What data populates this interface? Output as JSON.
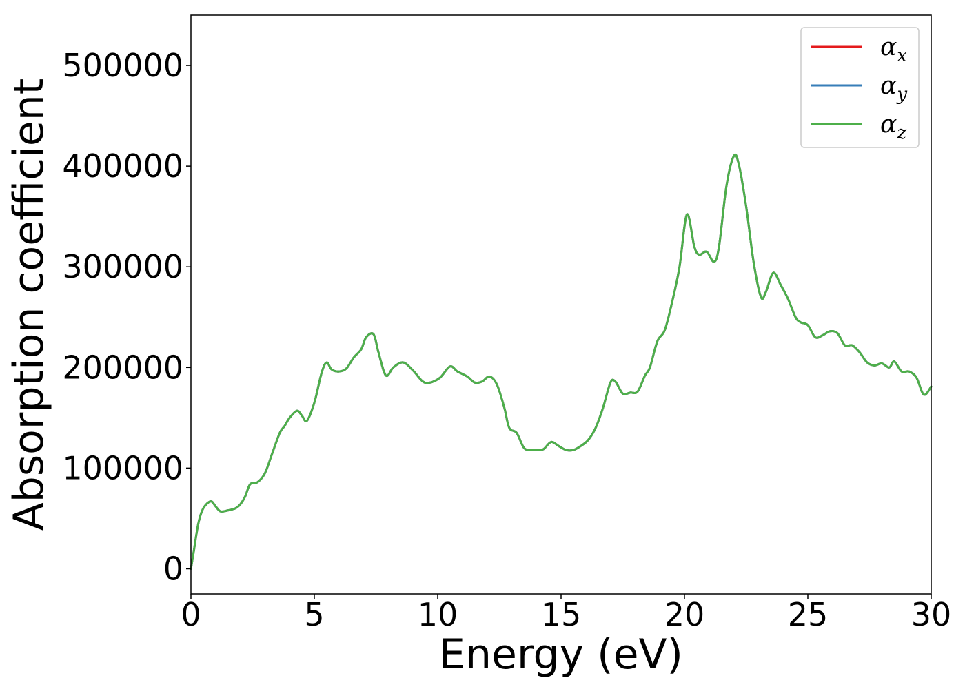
{
  "chart_data": {
    "type": "line",
    "xlabel": "Energy (eV)",
    "ylabel": "Absorption coefficient",
    "xlim": [
      0,
      30
    ],
    "ylim": [
      -25000,
      550000
    ],
    "xticks": [
      0,
      5,
      10,
      15,
      20,
      25,
      30
    ],
    "yticks": [
      0,
      100000,
      200000,
      300000,
      400000,
      500000
    ],
    "grid": false,
    "legend_position": "top-right",
    "series": [
      {
        "name": "αx",
        "symbol": "α",
        "subscript": "x",
        "color": "#e41a1c",
        "x": [
          0,
          0.1,
          0.3,
          0.5,
          0.8,
          1.0,
          1.2,
          1.5,
          1.8,
          2.0,
          2.2,
          2.4,
          2.7,
          3.0,
          3.3,
          3.6,
          3.8,
          4.0,
          4.3,
          4.5,
          4.7,
          5.0,
          5.3,
          5.5,
          5.7,
          6.0,
          6.3,
          6.6,
          6.9,
          7.1,
          7.4,
          7.6,
          7.9,
          8.2,
          8.6,
          9.0,
          9.4,
          9.7,
          10.1,
          10.5,
          10.8,
          11.2,
          11.5,
          11.8,
          12.1,
          12.4,
          12.7,
          12.9,
          13.2,
          13.5,
          13.8,
          14.1,
          14.3,
          14.6,
          14.9,
          15.2,
          15.5,
          15.8,
          16.1,
          16.4,
          16.7,
          17.0,
          17.2,
          17.5,
          17.8,
          18.1,
          18.4,
          18.6,
          18.9,
          19.2,
          19.5,
          19.8,
          20.1,
          20.4,
          20.6,
          20.9,
          21.2,
          21.4,
          21.7,
          22.0,
          22.2,
          22.5,
          22.8,
          23.1,
          23.3,
          23.6,
          23.9,
          24.2,
          24.5,
          24.7,
          25.0,
          25.3,
          25.6,
          25.9,
          26.2,
          26.5,
          26.8,
          27.1,
          27.4,
          27.7,
          28.0,
          28.3,
          28.5,
          28.8,
          29.1,
          29.4,
          29.7,
          30.0
        ],
        "values": [
          0,
          15000,
          45000,
          60000,
          67000,
          62000,
          57000,
          58000,
          60000,
          64000,
          72000,
          84000,
          86000,
          95000,
          115000,
          135000,
          142000,
          150000,
          157000,
          152000,
          147000,
          165000,
          195000,
          205000,
          198000,
          196000,
          199000,
          210000,
          218000,
          230000,
          233000,
          215000,
          192000,
          200000,
          205000,
          197000,
          186000,
          185000,
          190000,
          201000,
          196000,
          191000,
          185000,
          186000,
          191000,
          183000,
          160000,
          140000,
          135000,
          120000,
          118000,
          118000,
          119000,
          126000,
          122000,
          118000,
          118000,
          122000,
          128000,
          140000,
          160000,
          185000,
          186000,
          174000,
          175000,
          176000,
          192000,
          200000,
          226000,
          237000,
          265000,
          300000,
          352000,
          320000,
          312000,
          315000,
          305000,
          320000,
          380000,
          410000,
          402000,
          360000,
          305000,
          270000,
          275000,
          294000,
          282000,
          268000,
          250000,
          245000,
          242000,
          230000,
          232000,
          236000,
          234000,
          222000,
          222000,
          215000,
          205000,
          202000,
          204000,
          200000,
          206000,
          196000,
          196000,
          190000,
          173000,
          181000
        ]
      },
      {
        "name": "αy",
        "symbol": "α",
        "subscript": "y",
        "color": "#377eb8",
        "x": [
          0,
          0.1,
          0.3,
          0.5,
          0.8,
          1.0,
          1.2,
          1.5,
          1.8,
          2.0,
          2.2,
          2.4,
          2.7,
          3.0,
          3.3,
          3.6,
          3.8,
          4.0,
          4.3,
          4.5,
          4.7,
          5.0,
          5.3,
          5.5,
          5.7,
          6.0,
          6.3,
          6.6,
          6.9,
          7.1,
          7.4,
          7.6,
          7.9,
          8.2,
          8.6,
          9.0,
          9.4,
          9.7,
          10.1,
          10.5,
          10.8,
          11.2,
          11.5,
          11.8,
          12.1,
          12.4,
          12.7,
          12.9,
          13.2,
          13.5,
          13.8,
          14.1,
          14.3,
          14.6,
          14.9,
          15.2,
          15.5,
          15.8,
          16.1,
          16.4,
          16.7,
          17.0,
          17.2,
          17.5,
          17.8,
          18.1,
          18.4,
          18.6,
          18.9,
          19.2,
          19.5,
          19.8,
          20.1,
          20.4,
          20.6,
          20.9,
          21.2,
          21.4,
          21.7,
          22.0,
          22.2,
          22.5,
          22.8,
          23.1,
          23.3,
          23.6,
          23.9,
          24.2,
          24.5,
          24.7,
          25.0,
          25.3,
          25.6,
          25.9,
          26.2,
          26.5,
          26.8,
          27.1,
          27.4,
          27.7,
          28.0,
          28.3,
          28.5,
          28.8,
          29.1,
          29.4,
          29.7,
          30.0
        ],
        "values": [
          0,
          15000,
          45000,
          60000,
          67000,
          62000,
          57000,
          58000,
          60000,
          64000,
          72000,
          84000,
          86000,
          95000,
          115000,
          135000,
          142000,
          150000,
          157000,
          152000,
          147000,
          165000,
          195000,
          205000,
          198000,
          196000,
          199000,
          210000,
          218000,
          230000,
          233000,
          215000,
          192000,
          200000,
          205000,
          197000,
          186000,
          185000,
          190000,
          201000,
          196000,
          191000,
          185000,
          186000,
          191000,
          183000,
          160000,
          140000,
          135000,
          120000,
          118000,
          118000,
          119000,
          126000,
          122000,
          118000,
          118000,
          122000,
          128000,
          140000,
          160000,
          185000,
          186000,
          174000,
          175000,
          176000,
          192000,
          200000,
          226000,
          237000,
          265000,
          300000,
          352000,
          320000,
          312000,
          315000,
          305000,
          320000,
          380000,
          410000,
          402000,
          360000,
          305000,
          270000,
          275000,
          294000,
          282000,
          268000,
          250000,
          245000,
          242000,
          230000,
          232000,
          236000,
          234000,
          222000,
          222000,
          215000,
          205000,
          202000,
          204000,
          200000,
          206000,
          196000,
          196000,
          190000,
          173000,
          181000
        ]
      },
      {
        "name": "αz",
        "symbol": "α",
        "subscript": "z",
        "color": "#4daf4a",
        "x": [
          0,
          0.1,
          0.3,
          0.5,
          0.8,
          1.0,
          1.2,
          1.5,
          1.8,
          2.0,
          2.2,
          2.4,
          2.7,
          3.0,
          3.3,
          3.6,
          3.8,
          4.0,
          4.3,
          4.5,
          4.7,
          5.0,
          5.3,
          5.5,
          5.7,
          6.0,
          6.3,
          6.6,
          6.9,
          7.1,
          7.4,
          7.6,
          7.9,
          8.2,
          8.6,
          9.0,
          9.4,
          9.7,
          10.1,
          10.5,
          10.8,
          11.2,
          11.5,
          11.8,
          12.1,
          12.4,
          12.7,
          12.9,
          13.2,
          13.5,
          13.8,
          14.1,
          14.3,
          14.6,
          14.9,
          15.2,
          15.5,
          15.8,
          16.1,
          16.4,
          16.7,
          17.0,
          17.2,
          17.5,
          17.8,
          18.1,
          18.4,
          18.6,
          18.9,
          19.2,
          19.5,
          19.8,
          20.1,
          20.4,
          20.6,
          20.9,
          21.2,
          21.4,
          21.7,
          22.0,
          22.2,
          22.5,
          22.8,
          23.1,
          23.3,
          23.6,
          23.9,
          24.2,
          24.5,
          24.7,
          25.0,
          25.3,
          25.6,
          25.9,
          26.2,
          26.5,
          26.8,
          27.1,
          27.4,
          27.7,
          28.0,
          28.3,
          28.5,
          28.8,
          29.1,
          29.4,
          29.7,
          30.0
        ],
        "values": [
          0,
          15000,
          45000,
          60000,
          67000,
          62000,
          57000,
          58000,
          60000,
          64000,
          72000,
          84000,
          86000,
          95000,
          115000,
          135000,
          142000,
          150000,
          157000,
          152000,
          147000,
          165000,
          195000,
          205000,
          198000,
          196000,
          199000,
          210000,
          218000,
          230000,
          233000,
          215000,
          192000,
          200000,
          205000,
          197000,
          186000,
          185000,
          190000,
          201000,
          196000,
          191000,
          185000,
          186000,
          191000,
          183000,
          160000,
          140000,
          135000,
          120000,
          118000,
          118000,
          119000,
          126000,
          122000,
          118000,
          118000,
          122000,
          128000,
          140000,
          160000,
          185000,
          186000,
          174000,
          175000,
          176000,
          192000,
          200000,
          226000,
          237000,
          265000,
          300000,
          352000,
          320000,
          312000,
          315000,
          305000,
          320000,
          380000,
          410000,
          402000,
          360000,
          305000,
          270000,
          275000,
          294000,
          282000,
          268000,
          250000,
          245000,
          242000,
          230000,
          232000,
          236000,
          234000,
          222000,
          222000,
          215000,
          205000,
          202000,
          204000,
          200000,
          206000,
          196000,
          196000,
          190000,
          173000,
          181000
        ]
      }
    ]
  }
}
